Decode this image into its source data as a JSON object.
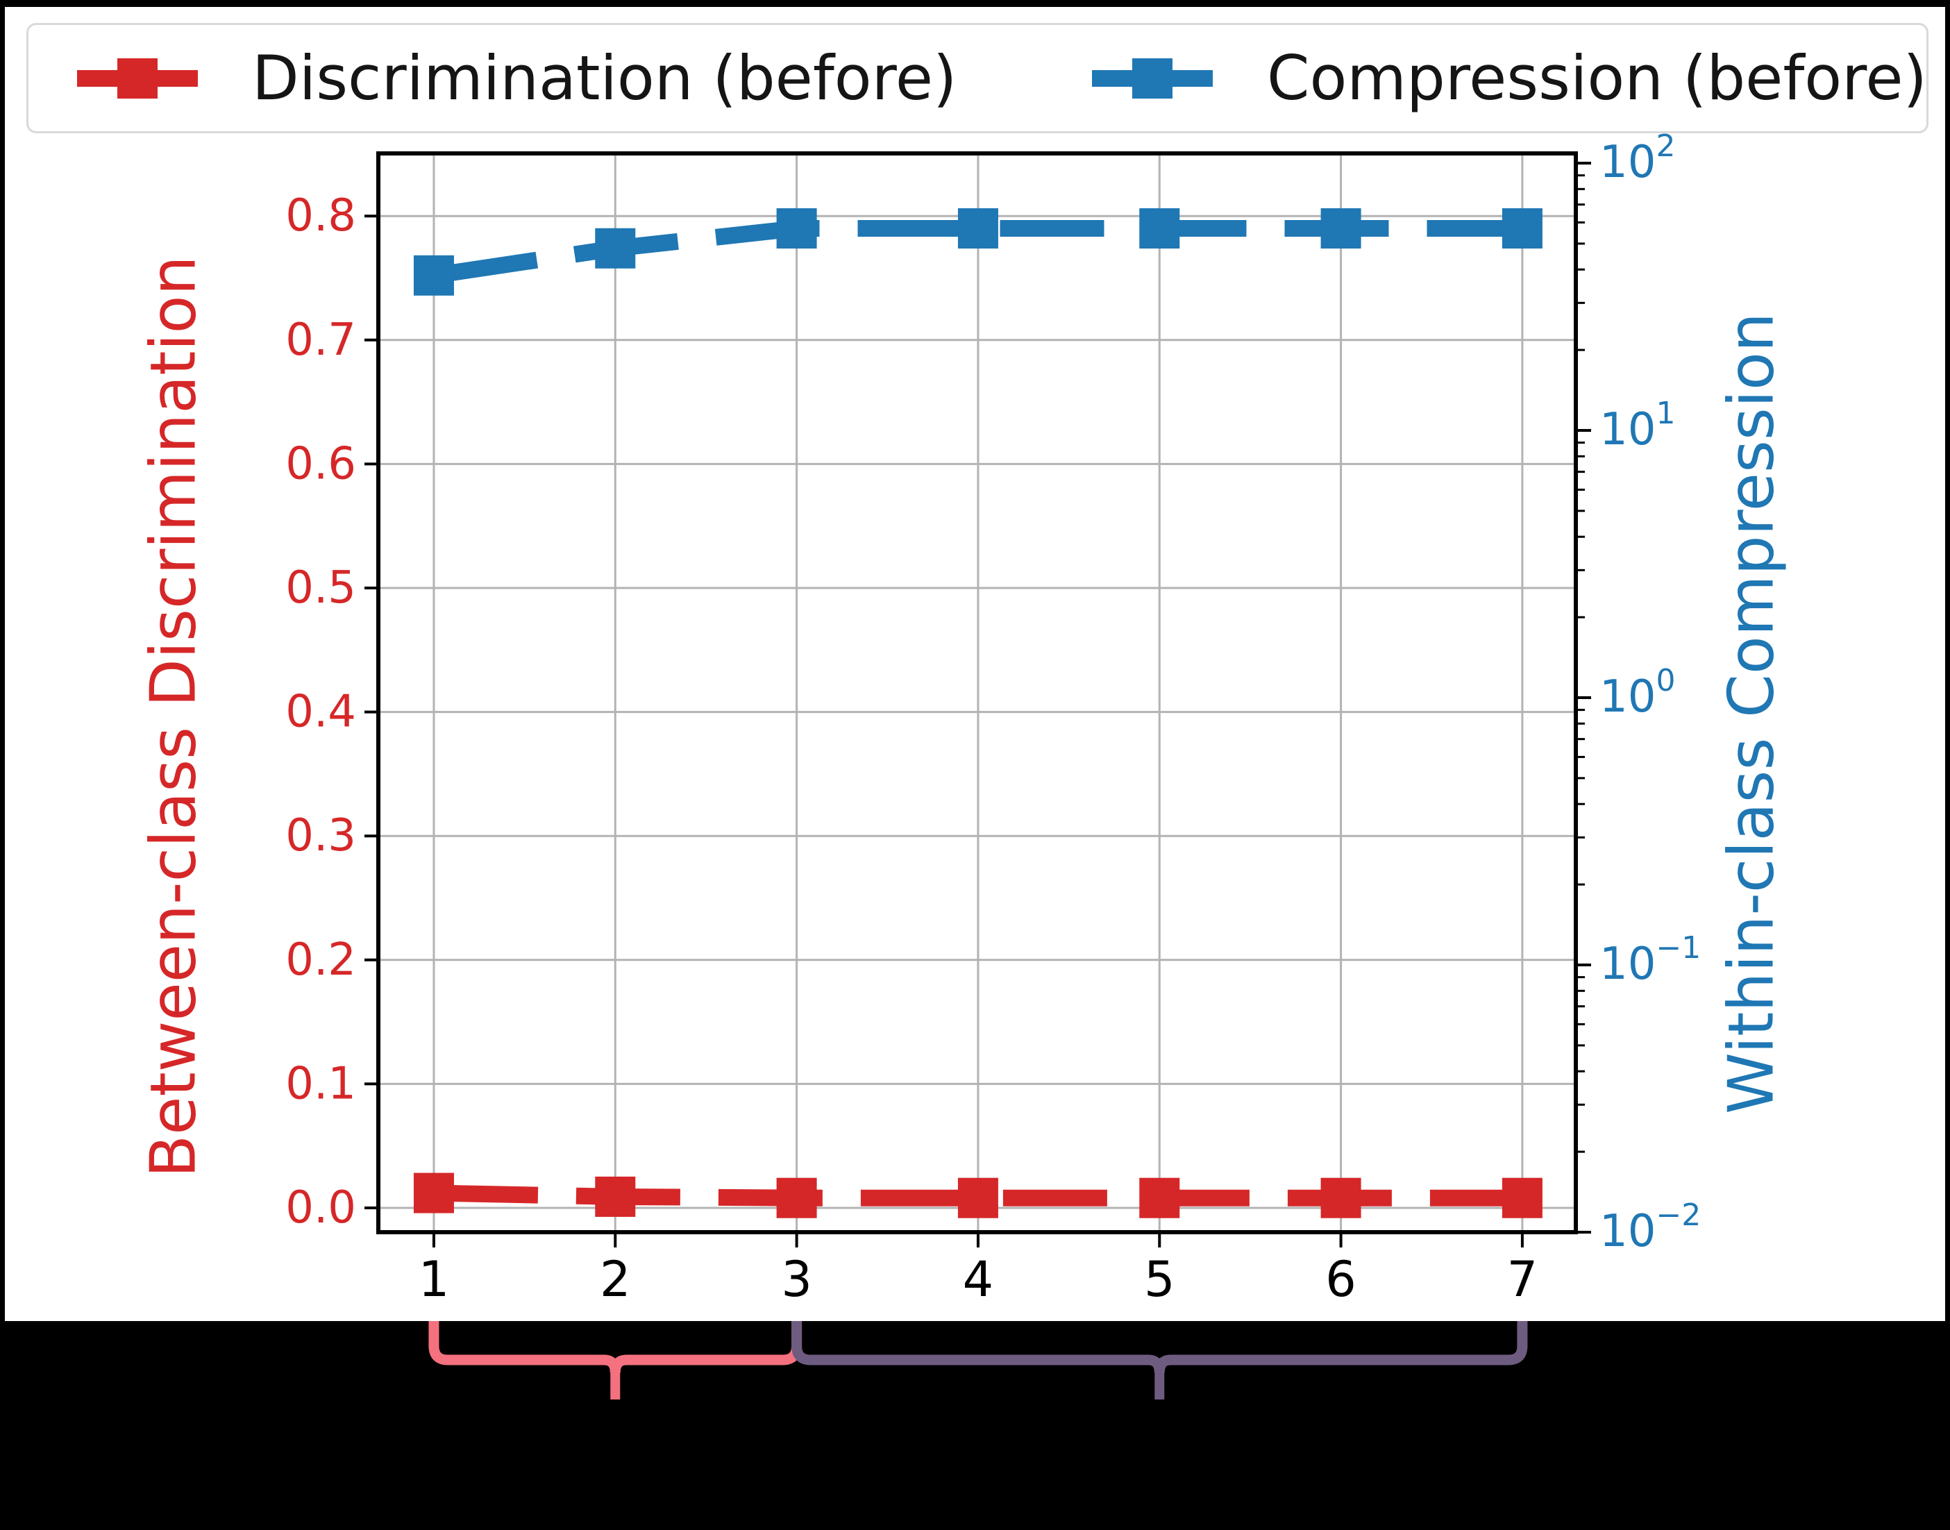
{
  "page": {
    "background": "#000000",
    "panel_background": "#ffffff"
  },
  "legend": {
    "items": [
      {
        "label": "Discrimination (before)",
        "color": "#d62728",
        "marker": "square",
        "linestyle": "dashed"
      },
      {
        "label": "Compression (before)",
        "color": "#1f77b4",
        "marker": "square",
        "linestyle": "dashed"
      }
    ]
  },
  "chart_data": {
    "type": "line",
    "title": "",
    "xlabel": "",
    "x": [
      1,
      2,
      3,
      4,
      5,
      6,
      7
    ],
    "x_tick_labels": [
      "1",
      "2",
      "3",
      "4",
      "5",
      "6",
      "7"
    ],
    "xlim": [
      0.694,
      7.295
    ],
    "grid": true,
    "legend_position": "top",
    "series": [
      {
        "name": "Discrimination (before)",
        "axis": "left",
        "color": "#d62728",
        "linestyle": "dashed",
        "marker": "square",
        "values": [
          0.012,
          0.009,
          0.008,
          0.008,
          0.008,
          0.008,
          0.008
        ]
      },
      {
        "name": "Compression (before)",
        "axis": "right",
        "color": "#1f77b4",
        "linestyle": "dashed",
        "marker": "square",
        "values": [
          38,
          48,
          57,
          57,
          57,
          57,
          57
        ]
      }
    ],
    "left_axis": {
      "label": "Between-class Discrimination",
      "color": "#d62728",
      "scale": "linear",
      "tick_values": [
        0.0,
        0.1,
        0.2,
        0.3,
        0.4,
        0.5,
        0.6,
        0.7,
        0.8
      ],
      "tick_labels": [
        "0.0",
        "0.1",
        "0.2",
        "0.3",
        "0.4",
        "0.5",
        "0.6",
        "0.7",
        "0.8"
      ],
      "lim": [
        -0.0196,
        0.8505
      ]
    },
    "right_axis": {
      "label": "Within-class Compression",
      "color": "#1f77b4",
      "scale": "log",
      "tick_exponents": [
        2,
        1,
        0,
        -1,
        -2
      ],
      "lim_log10": [
        -2,
        2.0364
      ]
    }
  },
  "annotations": {
    "braces": [
      {
        "name": "brace-range-1-3",
        "color": "#f4717f",
        "x_start": 1,
        "x_end": 3,
        "x_tail": 2
      },
      {
        "name": "brace-range-3-7",
        "color": "#6e5c80",
        "x_start": 3,
        "x_end": 7,
        "x_tail": 5
      }
    ]
  }
}
